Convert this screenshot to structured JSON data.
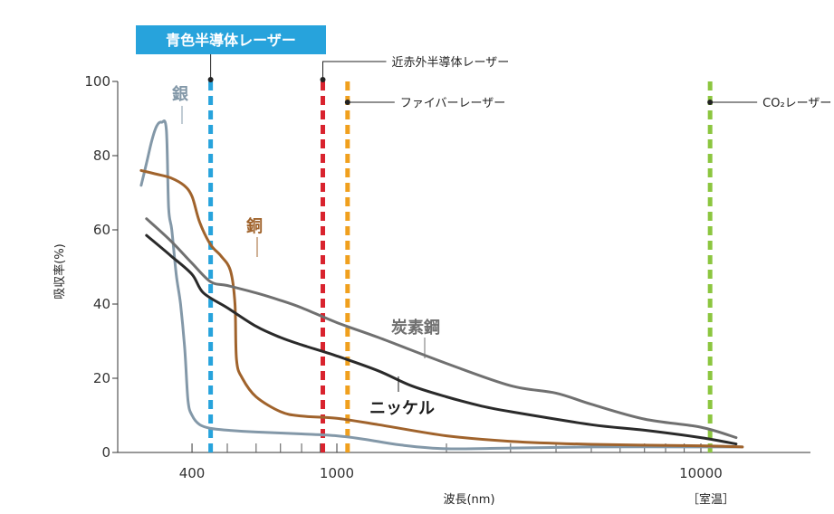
{
  "chart_data": {
    "type": "line",
    "xlabel": "波長(nm)",
    "ylabel": "吸収率(%)",
    "xscale": "log",
    "xlim": [
      250,
      20000
    ],
    "ylim": [
      0,
      100
    ],
    "x_tick_labels": [
      {
        "value": 400,
        "label": "400"
      },
      {
        "value": 1000,
        "label": "1000"
      },
      {
        "value": 10000,
        "label": "10000"
      }
    ],
    "x_minor_ticks": [
      500,
      600,
      700,
      800,
      900,
      2000,
      3000,
      4000,
      5000,
      6000,
      7000,
      8000,
      9000
    ],
    "y_ticks": [
      0,
      20,
      40,
      60,
      80,
      100
    ],
    "corner_note": "［室温］",
    "series": [
      {
        "name": "銀",
        "color": "#8398a8",
        "label_color": "#8398a8",
        "points": [
          [
            290,
            72
          ],
          [
            300,
            78
          ],
          [
            310,
            84
          ],
          [
            320,
            88
          ],
          [
            330,
            89
          ],
          [
            340,
            87
          ],
          [
            345,
            66
          ],
          [
            352,
            60
          ],
          [
            362,
            48
          ],
          [
            372,
            40
          ],
          [
            382,
            28
          ],
          [
            390,
            14
          ],
          [
            400,
            10
          ],
          [
            420,
            7.5
          ],
          [
            450,
            6.5
          ],
          [
            500,
            6
          ],
          [
            600,
            5.5
          ],
          [
            800,
            5
          ],
          [
            1000,
            4.5
          ],
          [
            1200,
            3.5
          ],
          [
            1500,
            2
          ],
          [
            2000,
            1
          ],
          [
            3000,
            1.2
          ],
          [
            5000,
            1.5
          ],
          [
            10000,
            1.5
          ],
          [
            13000,
            1.5
          ]
        ]
      },
      {
        "name": "銅",
        "color": "#a0632c",
        "label_color": "#a0632c",
        "points": [
          [
            290,
            76
          ],
          [
            320,
            75
          ],
          [
            350,
            74
          ],
          [
            380,
            72
          ],
          [
            400,
            69
          ],
          [
            420,
            62
          ],
          [
            450,
            56
          ],
          [
            480,
            53
          ],
          [
            510,
            49
          ],
          [
            525,
            40
          ],
          [
            530,
            25
          ],
          [
            550,
            20
          ],
          [
            600,
            15
          ],
          [
            700,
            11
          ],
          [
            800,
            9.8
          ],
          [
            1000,
            9.2
          ],
          [
            1300,
            7.5
          ],
          [
            2000,
            4.5
          ],
          [
            3000,
            3
          ],
          [
            5000,
            2.2
          ],
          [
            10000,
            1.8
          ],
          [
            13000,
            1.5
          ]
        ]
      },
      {
        "name": "炭素鋼",
        "color": "#707070",
        "label_color": "#707070",
        "points": [
          [
            300,
            63
          ],
          [
            350,
            57
          ],
          [
            400,
            51
          ],
          [
            450,
            46
          ],
          [
            500,
            45
          ],
          [
            600,
            43
          ],
          [
            700,
            41
          ],
          [
            800,
            39
          ],
          [
            1000,
            35
          ],
          [
            1300,
            31
          ],
          [
            2000,
            24
          ],
          [
            3000,
            18
          ],
          [
            4000,
            16
          ],
          [
            5000,
            13
          ],
          [
            7000,
            9
          ],
          [
            10000,
            6.8
          ],
          [
            12500,
            4
          ]
        ]
      },
      {
        "name": "ニッケル",
        "color": "#2a2a2a",
        "label_color": "#1a1a1a",
        "points": [
          [
            300,
            58.5
          ],
          [
            350,
            53
          ],
          [
            400,
            48
          ],
          [
            430,
            43
          ],
          [
            500,
            39
          ],
          [
            600,
            34
          ],
          [
            700,
            31
          ],
          [
            800,
            29
          ],
          [
            1000,
            26
          ],
          [
            1300,
            22
          ],
          [
            1600,
            18
          ],
          [
            2000,
            15
          ],
          [
            2500,
            12.5
          ],
          [
            3000,
            11
          ],
          [
            5000,
            7.5
          ],
          [
            7000,
            6
          ],
          [
            10000,
            4
          ],
          [
            12500,
            2.3
          ]
        ]
      }
    ],
    "lasers": [
      {
        "name": "青色半導体レーザー",
        "wavelength": 450,
        "color": "#27a3dc",
        "label_position": "top-left"
      },
      {
        "name": "近赤外半導体レーザー",
        "wavelength": 915,
        "color": "#d9232e",
        "label_position": "top-right"
      },
      {
        "name": "ファイバーレーザー",
        "wavelength": 1070,
        "color": "#f0a01e",
        "label_position": "right"
      },
      {
        "name": "CO₂レーザー",
        "wavelength": 10600,
        "color": "#8cc63f",
        "label_position": "right"
      }
    ]
  }
}
